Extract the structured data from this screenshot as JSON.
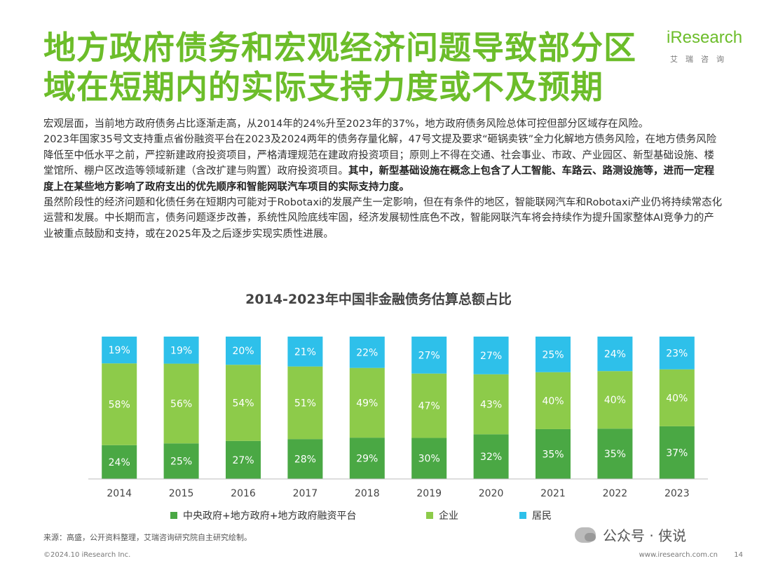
{
  "header": {
    "title_line1": "地方政府债务和宏观经济问题导致部分区",
    "title_line2": "域在短期内的实际支持力度或不及预期",
    "logo_word": "iResearch",
    "logo_sub": "艾瑞咨询"
  },
  "body": {
    "p1": "宏观层面，当前地方政府债务占比逐渐走高，从2014年的24%升至2023年的37%，地方政府债务风险总体可控但部分区域存在风险。",
    "p2_normal": "2023年国家35号文支持重点省份融资平台在2023及2024两年的债务存量化解，47号文提及要求“砸锅卖铁”全力化解地方债务风险，在地方债务风险降低至中低水平之前，严控新建政府投资项目，严格清理规范在建政府投资项目；原则上不得在交通、社会事业、市政、产业园区、新型基础设施、楼堂馆所、棚户区改造等领域新建（含改扩建与购置）政府投资项目。",
    "p2_bold": "其中，新型基础设施在概念上包含了人工智能、车路云、路测设施等，进而一定程度上在某些地方影响了政府支出的优先顺序和智能网联汽车项目的实际支持力度。",
    "p3": "虽然阶段性的经济问题和化债任务在短期内可能对于Robotaxi的发展产生一定影响，但在有条件的地区，智能联网汽车和Robotaxi产业仍将持续常态化运营和发展。中长期而言，债务问题逐步改善，系统性风险底线牢固，经济发展韧性底色不改，智能网联汽车将会持续作为提升国家整体AI竞争力的产业被重点鼓励和支持，或在2025年及之后逐步实现实质性进展。"
  },
  "chart_data": {
    "type": "bar",
    "stacked": true,
    "title": "2014-2023年中国非金融债务估算总额占比",
    "categories": [
      "2014",
      "2015",
      "2016",
      "2017",
      "2018",
      "2019",
      "2020",
      "2021",
      "2022",
      "2023"
    ],
    "series": [
      {
        "name": "中央政府+地方政府+地方政府融资平台",
        "color": "#4aa844",
        "values": [
          24,
          25,
          27,
          28,
          29,
          30,
          32,
          35,
          35,
          37
        ]
      },
      {
        "name": "企业",
        "color": "#8dcb4a",
        "values": [
          58,
          56,
          54,
          51,
          49,
          47,
          43,
          40,
          40,
          40
        ]
      },
      {
        "name": "居民",
        "color": "#2ec0ea",
        "values": [
          19,
          19,
          20,
          21,
          22,
          27,
          27,
          25,
          24,
          23
        ]
      }
    ],
    "value_suffix": "%",
    "ylim": [
      0,
      100
    ],
    "grid": false,
    "legend_position": "bottom"
  },
  "footer": {
    "source": "来源：高盛，公开资料整理，艾瑞咨询研究院自主研究绘制。",
    "copyright": "©2024.10 iResearch Inc.",
    "url": "www.iresearch.com.cn",
    "page": "14",
    "watermark": "公众号 · 侠说"
  }
}
